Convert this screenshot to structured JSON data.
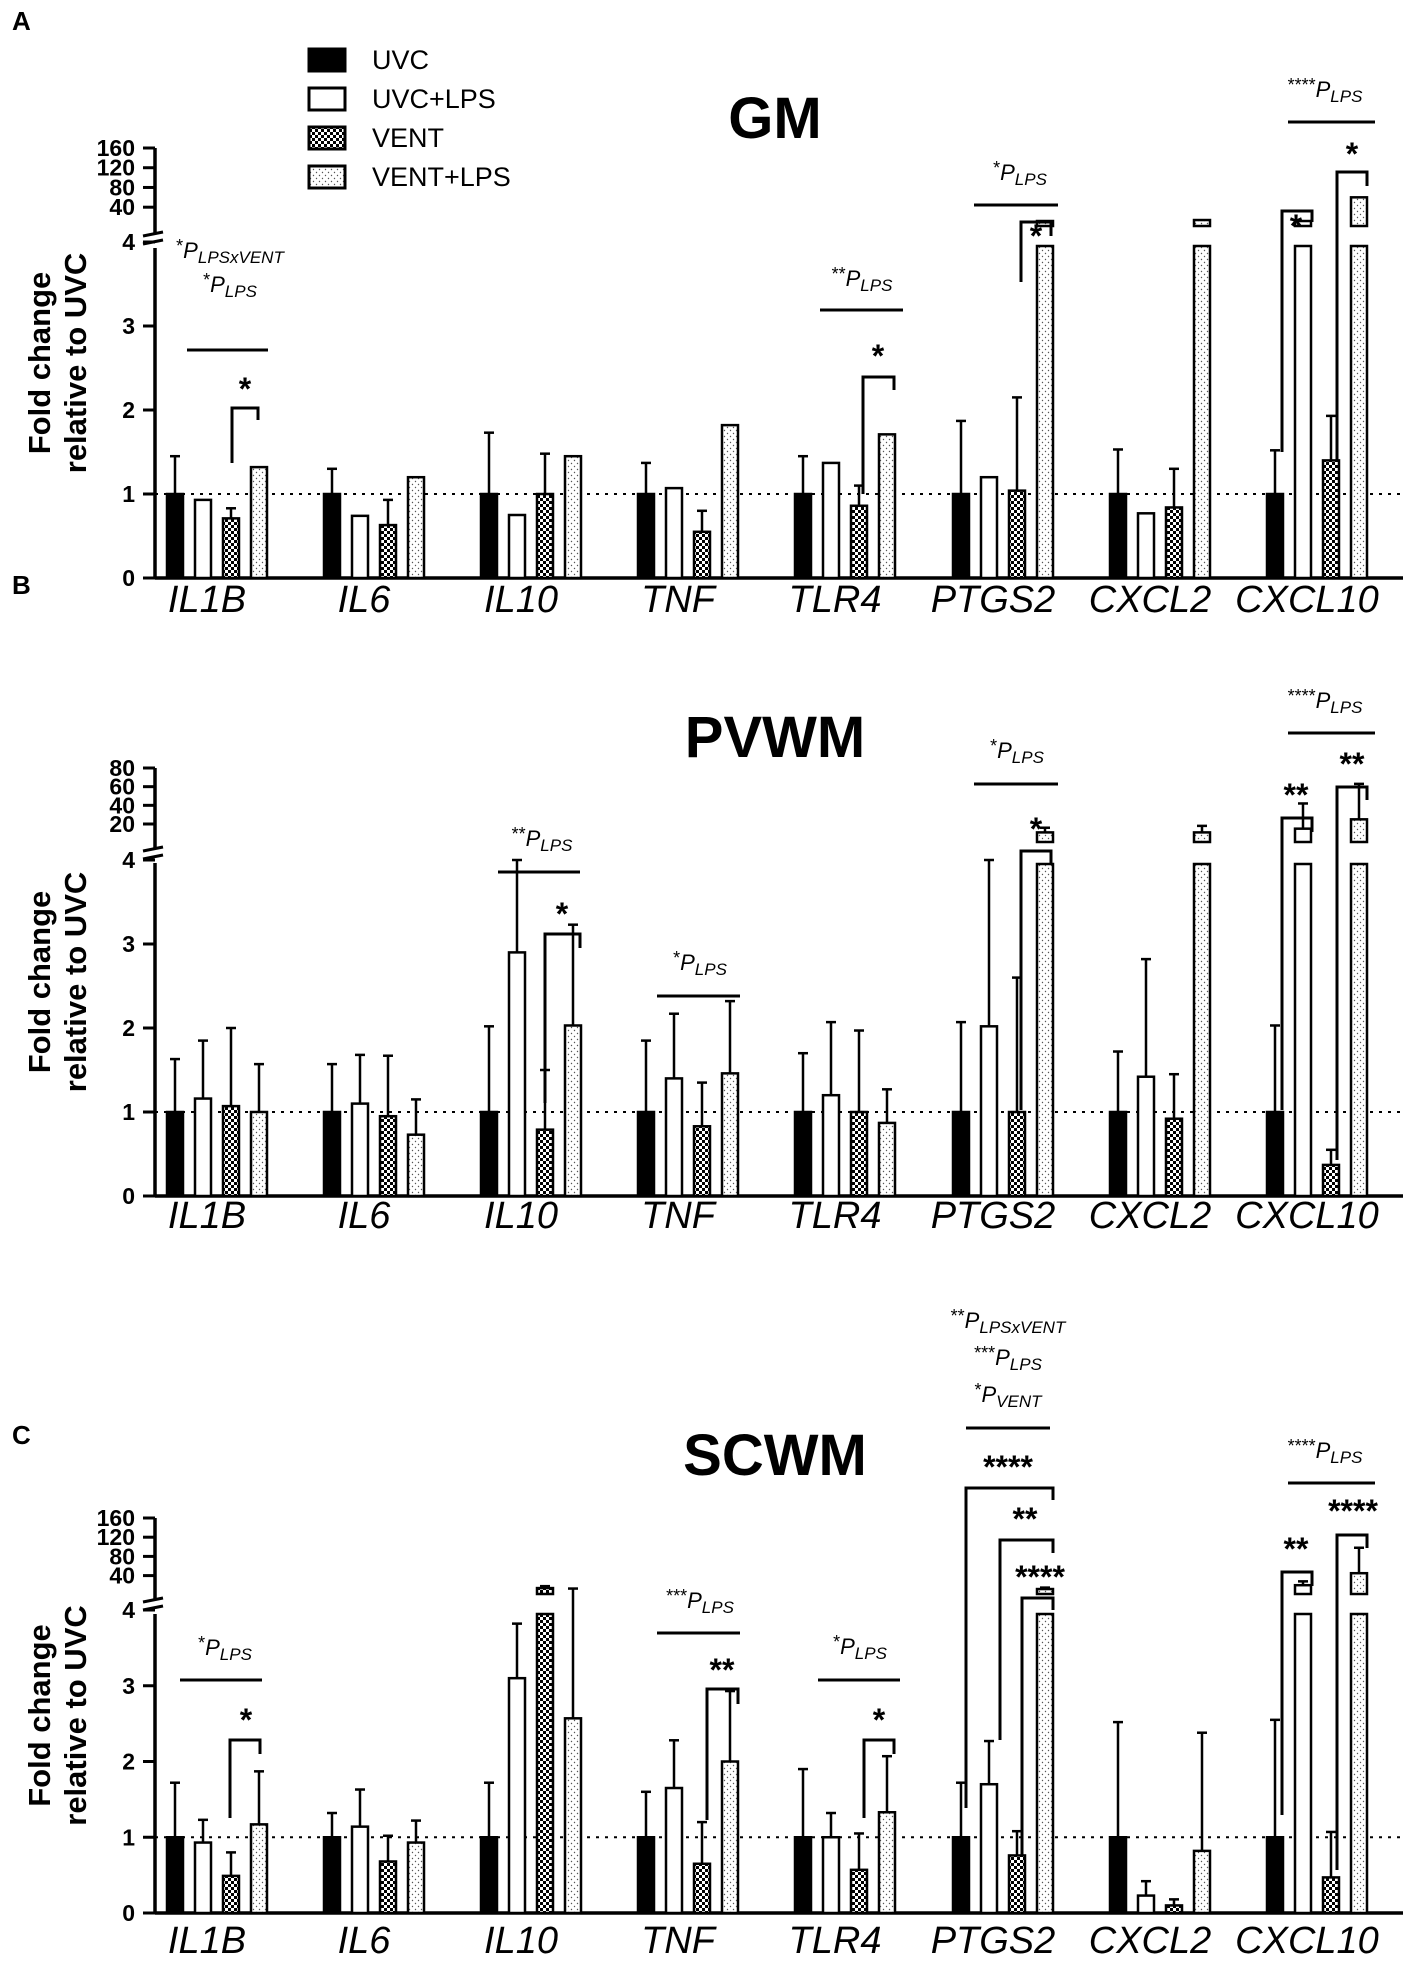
{
  "legend": {
    "items": [
      {
        "label": "UVC",
        "fill": "solid"
      },
      {
        "label": "UVC+LPS",
        "fill": "open"
      },
      {
        "label": "VENT",
        "fill": "checker"
      },
      {
        "label": "VENT+LPS",
        "fill": "dots"
      }
    ]
  },
  "colors": {
    "ink": "#000000",
    "paper": "#ffffff"
  },
  "chart_data": [
    {
      "panel": "A",
      "type": "bar",
      "title": "GM",
      "ylabel": "Fold change relative to UVC",
      "categories": [
        "IL1B",
        "IL6",
        "IL10",
        "TNF",
        "TLR4",
        "PTGS2",
        "CXCL2",
        "CXCL10"
      ],
      "ylim_lower": [
        0,
        4
      ],
      "lower_ticks": [
        "0",
        "1",
        "2",
        "3",
        "4"
      ],
      "ylim_upper": [
        10,
        160
      ],
      "upper_ticks": [
        "40",
        "80",
        "120",
        "160"
      ],
      "reference_line": 1,
      "series": [
        {
          "name": "UVC",
          "values": [
            1.0,
            1.0,
            1.0,
            1.0,
            1.0,
            1.0,
            1.0,
            1.0
          ],
          "errors": [
            1.45,
            1.3,
            1.73,
            1.37,
            1.45,
            1.87,
            1.53,
            1.52
          ]
        },
        {
          "name": "UVC+LPS",
          "values": [
            0.93,
            0.74,
            0.75,
            1.07,
            1.37,
            1.2,
            0.77,
            12
          ]
        },
        {
          "name": "VENT",
          "values": [
            0.71,
            0.63,
            1.0,
            0.55,
            0.86,
            1.04,
            0.84,
            1.4
          ],
          "errors": [
            0.83,
            0.93,
            1.48,
            0.8,
            1.1,
            2.15,
            1.3,
            1.93
          ]
        },
        {
          "name": "VENT+LPS",
          "values": [
            1.32,
            1.2,
            1.45,
            1.82,
            1.71,
            12,
            14,
            60
          ]
        }
      ],
      "annotations": [
        {
          "stars": "*",
          "param": "P",
          "sub": "LPSxVENT"
        },
        {
          "stars": "*",
          "param": "P",
          "sub": "LPS"
        },
        {
          "stars": "*"
        },
        {
          "stars": "**",
          "param": "P",
          "sub": "LPS"
        },
        {
          "stars": "*"
        },
        {
          "stars": "*",
          "param": "P",
          "sub": "LPS"
        },
        {
          "stars": "*"
        },
        {
          "stars": "****",
          "param": "P",
          "sub": "LPS"
        },
        {
          "stars": "*"
        },
        {
          "stars": "*"
        }
      ]
    },
    {
      "panel": "B",
      "type": "bar",
      "title": "PVWM",
      "ylabel": "Fold change relative to UVC",
      "categories": [
        "IL1B",
        "IL6",
        "IL10",
        "TNF",
        "TLR4",
        "PTGS2",
        "CXCL2",
        "CXCL10"
      ],
      "ylim_lower": [
        0,
        4
      ],
      "lower_ticks": [
        "0",
        "1",
        "2",
        "3",
        "4"
      ],
      "ylim_upper": [
        5,
        80
      ],
      "upper_ticks": [
        "20",
        "40",
        "60",
        "80"
      ],
      "reference_line": 1,
      "series": [
        {
          "name": "UVC",
          "values": [
            1.0,
            1.0,
            1.0,
            1.0,
            1.0,
            1.0,
            1.0,
            1.0
          ],
          "errors": [
            1.63,
            1.57,
            2.02,
            1.85,
            1.7,
            2.07,
            1.72,
            2.03
          ]
        },
        {
          "name": "UVC+LPS",
          "values": [
            1.16,
            1.1,
            2.9,
            1.4,
            1.2,
            2.02,
            1.42,
            15
          ],
          "errors": [
            1.85,
            1.68,
            4.0,
            2.17,
            2.07,
            4.0,
            2.82,
            42
          ]
        },
        {
          "name": "VENT",
          "values": [
            1.07,
            0.95,
            0.79,
            0.83,
            1.0,
            1.0,
            0.92,
            0.37
          ],
          "errors": [
            2.0,
            1.67,
            1.5,
            1.35,
            1.97,
            2.6,
            1.45,
            0.55
          ]
        },
        {
          "name": "VENT+LPS",
          "values": [
            1.0,
            0.73,
            2.03,
            1.46,
            0.87,
            11,
            11,
            25
          ],
          "errors": [
            1.57,
            1.15,
            3.23,
            2.32,
            1.27,
            16,
            18,
            63
          ]
        }
      ],
      "annotations": [
        {
          "stars": "**",
          "param": "P",
          "sub": "LPS"
        },
        {
          "stars": "*"
        },
        {
          "stars": "*",
          "param": "P",
          "sub": "LPS"
        },
        {
          "stars": "*",
          "param": "P",
          "sub": "LPS"
        },
        {
          "stars": "*"
        },
        {
          "stars": "****",
          "param": "P",
          "sub": "LPS"
        },
        {
          "stars": "**"
        },
        {
          "stars": "**"
        }
      ]
    },
    {
      "panel": "C",
      "type": "bar",
      "title": "SCWM",
      "ylabel": "Fold change relative to UVC",
      "categories": [
        "IL1B",
        "IL6",
        "IL10",
        "TNF",
        "TLR4",
        "PTGS2",
        "CXCL2",
        "CXCL10"
      ],
      "ylim_lower": [
        0,
        4
      ],
      "lower_ticks": [
        "0",
        "1",
        "2",
        "3",
        "4"
      ],
      "ylim_upper": [
        10,
        160
      ],
      "upper_ticks": [
        "40",
        "80",
        "120",
        "160"
      ],
      "reference_line": 1,
      "series": [
        {
          "name": "UVC",
          "values": [
            1.0,
            1.0,
            1.0,
            1.0,
            1.0,
            1.0,
            1.0,
            1.0
          ],
          "errors": [
            1.72,
            1.32,
            1.72,
            1.6,
            1.9,
            1.72,
            2.52,
            2.55
          ]
        },
        {
          "name": "UVC+LPS",
          "values": [
            0.93,
            1.14,
            3.1,
            1.65,
            1.0,
            1.7,
            0.23,
            20
          ],
          "errors": [
            1.23,
            1.63,
            3.82,
            2.28,
            1.32,
            2.27,
            0.42,
            28
          ]
        },
        {
          "name": "VENT",
          "values": [
            0.49,
            0.68,
            14,
            0.65,
            0.57,
            0.76,
            0.1,
            0.47
          ],
          "errors": [
            0.8,
            1.02,
            18,
            1.2,
            1.05,
            1.08,
            0.18,
            1.07
          ]
        },
        {
          "name": "VENT+LPS",
          "values": [
            1.17,
            0.93,
            2.57,
            2.0,
            1.33,
            12,
            0.82,
            45
          ],
          "errors": [
            1.87,
            1.22,
            13,
            2.93,
            2.07,
            15,
            2.38,
            98
          ]
        }
      ],
      "annotations": [
        {
          "stars": "*",
          "param": "P",
          "sub": "LPS"
        },
        {
          "stars": "*"
        },
        {
          "stars": "***",
          "param": "P",
          "sub": "LPS"
        },
        {
          "stars": "**"
        },
        {
          "stars": "*",
          "param": "P",
          "sub": "LPS"
        },
        {
          "stars": "*"
        },
        {
          "stars": "**",
          "param": "P",
          "sub": "LPSxVENT"
        },
        {
          "stars": "***",
          "param": "P",
          "sub": "LPS"
        },
        {
          "stars": "*",
          "param": "P",
          "sub": "VENT"
        },
        {
          "stars": "****"
        },
        {
          "stars": "**"
        },
        {
          "stars": "****"
        },
        {
          "stars": "****",
          "param": "P",
          "sub": "LPS"
        },
        {
          "stars": "**"
        },
        {
          "stars": "****"
        }
      ]
    }
  ]
}
